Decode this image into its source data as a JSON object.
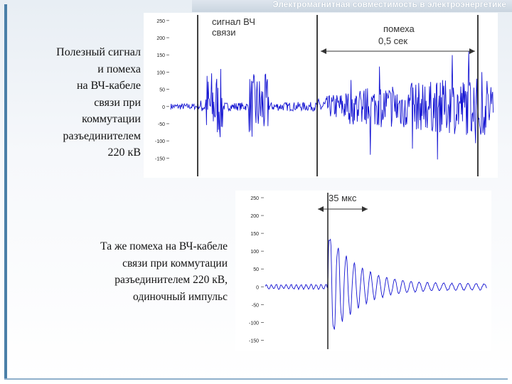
{
  "header": {
    "title": "Электромагнитная совместимость в электроэнергетике"
  },
  "captions": {
    "top": [
      "Полезный сигнал",
      "и помеха",
      "на ВЧ-кабеле",
      "связи при",
      "коммутации",
      "разъединителем",
      "220 кВ"
    ],
    "bottom": [
      "Та же помеха на ВЧ-кабеле",
      "связи при коммутации",
      "разъединителем 220 кВ,",
      "одиночный импульс"
    ]
  },
  "chart_data": [
    {
      "type": "line",
      "yticks": [
        "250",
        "200",
        "150",
        "100",
        "50",
        "0",
        "-50",
        "-100",
        "-150"
      ],
      "ylim": [
        -170,
        260
      ],
      "annotations": {
        "signal_label": [
          "сигнал ВЧ",
          "связи"
        ],
        "noise_label": "помеха",
        "noise_duration": "0,5 сек"
      },
      "colors": {
        "trace": "#1414d2",
        "marker": "#111111"
      }
    },
    {
      "type": "line",
      "yticks": [
        "250",
        "200",
        "150",
        "100",
        "50",
        "0",
        "-50",
        "-100",
        "-150"
      ],
      "ylim": [
        -165,
        260
      ],
      "annotations": {
        "duration": "35 мкс"
      },
      "colors": {
        "trace": "#1414d2",
        "marker": "#111111"
      }
    }
  ]
}
